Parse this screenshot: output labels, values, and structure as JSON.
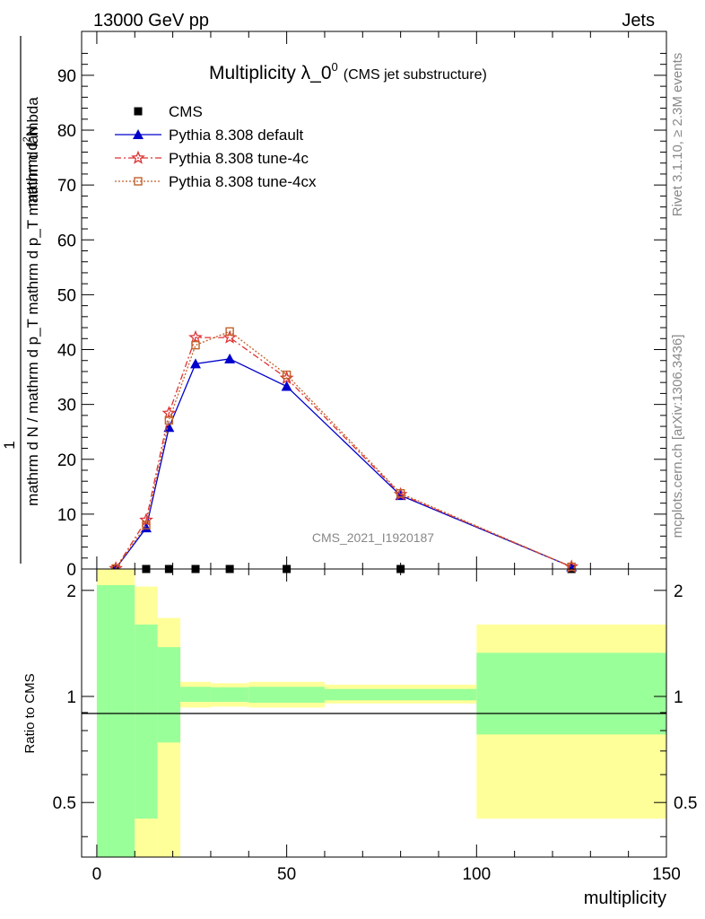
{
  "header": {
    "left": "13000 GeV pp",
    "right": "Jets"
  },
  "side_labels": {
    "rivet": "Rivet 3.1.10, ≥ 2.3M events",
    "mcplots": "mcplots.cern.ch [arXiv:1306.3436]"
  },
  "chart_data": [
    {
      "type": "line",
      "title": "Multiplicity λ_0",
      "title_superscript": "0",
      "subtitle": "(CMS jet substructure)",
      "watermark": "CMS_2021_I1920187",
      "ylabel_top": "1",
      "ylabel_numerator": "mathrm d",
      "ylabel_numerator_sup": "2",
      "ylabel_numerator_end": "N",
      "ylabel_denominator": "mathrm d N / mathrm d p_T mathrm d p_T mathrm d lambda",
      "xlim": [
        -4,
        150
      ],
      "ylim": [
        0,
        98
      ],
      "yticks": [
        0,
        10,
        20,
        30,
        40,
        50,
        60,
        70,
        80,
        90
      ],
      "legend_position": "top-left",
      "series": [
        {
          "name": "CMS",
          "color": "#000000",
          "marker": "square",
          "x": [
            5,
            13,
            19,
            26,
            35,
            50,
            80,
            125
          ],
          "y": [
            0.0,
            0.0,
            0.0,
            0.0,
            0.0,
            0.0,
            0.0,
            0.0
          ]
        },
        {
          "name": "Pythia 8.308 default",
          "color": "#0000cc",
          "marker": "triangle",
          "line": "solid",
          "x": [
            5,
            13,
            19,
            26,
            35,
            50,
            80,
            125
          ],
          "y": [
            0.1,
            7.5,
            25.8,
            37.4,
            38.3,
            33.3,
            13.4,
            0.4
          ]
        },
        {
          "name": "Pythia 8.308 tune-4c",
          "color": "#dd3333",
          "marker": "star",
          "line": "dashdot",
          "x": [
            5,
            13,
            19,
            26,
            35,
            50,
            80,
            125
          ],
          "y": [
            0.1,
            8.9,
            28.4,
            42.2,
            42.2,
            34.8,
            13.6,
            0.4
          ]
        },
        {
          "name": "Pythia 8.308 tune-4cx",
          "color": "#c0622a",
          "marker": "open-square",
          "line": "dotted",
          "x": [
            5,
            13,
            19,
            26,
            35,
            50,
            80,
            125
          ],
          "y": [
            0.1,
            8.0,
            27.1,
            40.8,
            43.3,
            35.4,
            13.8,
            0.4
          ]
        }
      ]
    },
    {
      "type": "area",
      "ylabel": "Ratio to CMS",
      "xlabel": "multiplicity",
      "xlim": [
        -4,
        150
      ],
      "ylim": [
        0.35,
        2.3
      ],
      "yticks": [
        0.5,
        1,
        2
      ],
      "xticks": [
        0,
        50,
        100,
        150
      ],
      "bands": [
        {
          "x0": 0,
          "x1": 10,
          "green_lo": 0.3,
          "green_hi": 2.07,
          "yellow_lo": 0.3,
          "yellow_hi": 2.3
        },
        {
          "x0": 10,
          "x1": 16,
          "green_lo": 0.45,
          "green_hi": 1.6,
          "yellow_lo": 0.35,
          "yellow_hi": 2.05
        },
        {
          "x0": 16,
          "x1": 22,
          "green_lo": 0.74,
          "green_hi": 1.38,
          "yellow_lo": 0.35,
          "yellow_hi": 1.67
        },
        {
          "x0": 22,
          "x1": 30,
          "green_lo": 0.965,
          "green_hi": 1.065,
          "yellow_lo": 0.93,
          "yellow_hi": 1.1
        },
        {
          "x0": 30,
          "x1": 40,
          "green_lo": 0.965,
          "green_hi": 1.062,
          "yellow_lo": 0.935,
          "yellow_hi": 1.09
        },
        {
          "x0": 40,
          "x1": 60,
          "green_lo": 0.96,
          "green_hi": 1.065,
          "yellow_lo": 0.93,
          "yellow_hi": 1.1
        },
        {
          "x0": 60,
          "x1": 100,
          "green_lo": 0.975,
          "green_hi": 1.05,
          "yellow_lo": 0.955,
          "yellow_hi": 1.08
        },
        {
          "x0": 100,
          "x1": 150,
          "green_lo": 0.78,
          "green_hi": 1.33,
          "yellow_lo": 0.45,
          "yellow_hi": 1.6
        }
      ],
      "colors": {
        "green": "#99ff99",
        "yellow": "#ffff99"
      }
    }
  ]
}
